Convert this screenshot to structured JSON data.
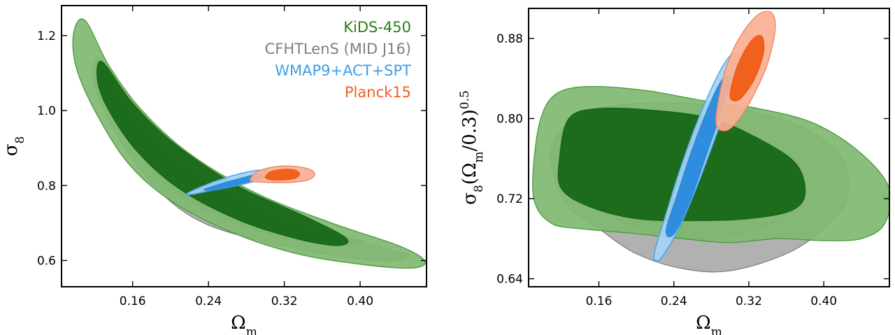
{
  "chart_data": [
    {
      "type": "contour",
      "panel": "left",
      "xlabel": "Ω",
      "xlabel_sub": "m",
      "ylabel": "σ",
      "ylabel_sub": "8",
      "xlim": [
        0.085,
        0.47
      ],
      "ylim": [
        0.53,
        1.28
      ],
      "x_ticks": [
        "0.16",
        "0.24",
        "0.32",
        "0.40"
      ],
      "x_tick_values": [
        0.16,
        0.24,
        0.32,
        0.4
      ],
      "y_ticks": [
        "1.2",
        "1.0",
        "0.8",
        "0.6"
      ],
      "y_tick_values": [
        1.2,
        1.0,
        0.8,
        0.6
      ],
      "grid": false,
      "legend_position": "top-right",
      "legend": [
        {
          "label": "KiDS-450",
          "color": "#2e7d1a"
        },
        {
          "label": "CFHTLenS (MID J16)",
          "color": "#808080"
        },
        {
          "label": "WMAP9+ACT+SPT",
          "color": "#3ca0e6"
        },
        {
          "label": "Planck15",
          "color": "#f06020"
        }
      ],
      "contours": [
        {
          "name": "CFHTLenS (MID J16)",
          "level": "95%",
          "fill": "#aaaaaa",
          "stroke": "#808080",
          "points": [
            [
              0.124,
              1.14
            ],
            [
              0.15,
              1.02
            ],
            [
              0.185,
              0.9
            ],
            [
              0.23,
              0.8
            ],
            [
              0.28,
              0.73
            ],
            [
              0.34,
              0.68
            ],
            [
              0.4,
              0.65
            ],
            [
              0.435,
              0.625
            ],
            [
              0.45,
              0.615
            ],
            [
              0.435,
              0.6
            ],
            [
              0.38,
              0.61
            ],
            [
              0.3,
              0.65
            ],
            [
              0.235,
              0.7
            ],
            [
              0.19,
              0.78
            ],
            [
              0.155,
              0.89
            ],
            [
              0.13,
              1.0
            ],
            [
              0.118,
              1.09
            ]
          ]
        },
        {
          "name": "CFHTLenS (MID J16)",
          "level": "68%",
          "fill": "#8c8c8c",
          "stroke": "#808080",
          "points": [
            [
              0.162,
              0.98
            ],
            [
              0.2,
              0.88
            ],
            [
              0.26,
              0.78
            ],
            [
              0.33,
              0.7
            ],
            [
              0.39,
              0.66
            ],
            [
              0.405,
              0.65
            ],
            [
              0.385,
              0.64
            ],
            [
              0.32,
              0.66
            ],
            [
              0.25,
              0.72
            ],
            [
              0.195,
              0.8
            ],
            [
              0.165,
              0.9
            ],
            [
              0.155,
              0.95
            ]
          ]
        },
        {
          "name": "KiDS-450",
          "level": "95%",
          "fill": "#7fb872",
          "stroke": "#4a9a3a",
          "points": [
            [
              0.11,
              1.24
            ],
            [
              0.135,
              1.12
            ],
            [
              0.17,
              1.0
            ],
            [
              0.22,
              0.885
            ],
            [
              0.29,
              0.78
            ],
            [
              0.37,
              0.7
            ],
            [
              0.44,
              0.64
            ],
            [
              0.468,
              0.6
            ],
            [
              0.455,
              0.58
            ],
            [
              0.4,
              0.59
            ],
            [
              0.33,
              0.62
            ],
            [
              0.26,
              0.68
            ],
            [
              0.2,
              0.76
            ],
            [
              0.155,
              0.86
            ],
            [
              0.12,
              1.0
            ],
            [
              0.1,
              1.12
            ],
            [
              0.098,
              1.21
            ]
          ]
        },
        {
          "name": "KiDS-450",
          "level": "68%",
          "fill": "#146614",
          "stroke": "#146614",
          "points": [
            [
              0.128,
              1.13
            ],
            [
              0.16,
              1.02
            ],
            [
              0.205,
              0.91
            ],
            [
              0.27,
              0.8
            ],
            [
              0.34,
              0.72
            ],
            [
              0.385,
              0.66
            ],
            [
              0.375,
              0.64
            ],
            [
              0.33,
              0.66
            ],
            [
              0.27,
              0.71
            ],
            [
              0.21,
              0.79
            ],
            [
              0.165,
              0.89
            ],
            [
              0.135,
              1.0
            ],
            [
              0.123,
              1.08
            ]
          ]
        },
        {
          "name": "WMAP9+ACT+SPT",
          "level": "95%",
          "fill": "#a7d1f5",
          "stroke": "#3ca0e6",
          "points": [
            [
              0.218,
              0.78
            ],
            [
              0.24,
              0.805
            ],
            [
              0.265,
              0.826
            ],
            [
              0.29,
              0.84
            ],
            [
              0.305,
              0.84
            ],
            [
              0.304,
              0.828
            ],
            [
              0.29,
              0.812
            ],
            [
              0.265,
              0.797
            ],
            [
              0.24,
              0.785
            ],
            [
              0.222,
              0.776
            ]
          ]
        },
        {
          "name": "WMAP9+ACT+SPT",
          "level": "68%",
          "fill": "#2588dd",
          "stroke": "#2588dd",
          "points": [
            [
              0.236,
              0.79
            ],
            [
              0.255,
              0.806
            ],
            [
              0.275,
              0.82
            ],
            [
              0.292,
              0.83
            ],
            [
              0.296,
              0.823
            ],
            [
              0.282,
              0.81
            ],
            [
              0.262,
              0.798
            ],
            [
              0.242,
              0.788
            ]
          ]
        },
        {
          "name": "Planck15",
          "level": "95%",
          "fill": "#f8b093",
          "stroke": "#f08060",
          "points": [
            [
              0.284,
              0.815
            ],
            [
              0.29,
              0.835
            ],
            [
              0.305,
              0.848
            ],
            [
              0.325,
              0.852
            ],
            [
              0.345,
              0.845
            ],
            [
              0.352,
              0.83
            ],
            [
              0.345,
              0.815
            ],
            [
              0.325,
              0.808
            ],
            [
              0.305,
              0.808
            ],
            [
              0.29,
              0.81
            ]
          ]
        },
        {
          "name": "Planck15",
          "level": "68%",
          "fill": "#f05a14",
          "stroke": "#f05a14",
          "points": [
            [
              0.3,
              0.822
            ],
            [
              0.305,
              0.836
            ],
            [
              0.318,
              0.843
            ],
            [
              0.33,
              0.842
            ],
            [
              0.336,
              0.832
            ],
            [
              0.332,
              0.82
            ],
            [
              0.318,
              0.815
            ],
            [
              0.305,
              0.816
            ]
          ]
        }
      ]
    },
    {
      "type": "contour",
      "panel": "right",
      "xlabel": "Ω",
      "xlabel_sub": "m",
      "ylabel": "σ",
      "ylabel_sub": "8",
      "ylabel_rest": "(Ω",
      "ylabel_rest_sub": "m",
      "ylabel_tail": "/0.3)",
      "ylabel_sup": "0.5",
      "xlim": [
        0.085,
        0.47
      ],
      "ylim": [
        0.632,
        0.91
      ],
      "x_ticks": [
        "0.16",
        "0.24",
        "0.32",
        "0.40"
      ],
      "x_tick_values": [
        0.16,
        0.24,
        0.32,
        0.4
      ],
      "y_ticks": [
        "0.88",
        "0.80",
        "0.72",
        "0.64"
      ],
      "y_tick_values": [
        0.88,
        0.8,
        0.72,
        0.64
      ],
      "grid": false,
      "contours": [
        {
          "name": "CFHTLenS (MID J16)",
          "level": "95%",
          "fill": "#aaaaaa",
          "stroke": "#808080",
          "points": [
            [
              0.108,
              0.76
            ],
            [
              0.12,
              0.79
            ],
            [
              0.15,
              0.808
            ],
            [
              0.2,
              0.815
            ],
            [
              0.26,
              0.815
            ],
            [
              0.32,
              0.808
            ],
            [
              0.38,
              0.79
            ],
            [
              0.42,
              0.76
            ],
            [
              0.425,
              0.72
            ],
            [
              0.4,
              0.69
            ],
            [
              0.36,
              0.665
            ],
            [
              0.3,
              0.648
            ],
            [
              0.25,
              0.65
            ],
            [
              0.2,
              0.665
            ],
            [
              0.16,
              0.69
            ],
            [
              0.125,
              0.715
            ]
          ]
        },
        {
          "name": "CFHTLenS (MID J16)",
          "level": "68%",
          "fill": "#929292",
          "stroke": "#808080",
          "points": [
            [
              0.16,
              0.75
            ],
            [
              0.18,
              0.77
            ],
            [
              0.23,
              0.78
            ],
            [
              0.3,
              0.78
            ],
            [
              0.36,
              0.765
            ],
            [
              0.38,
              0.74
            ],
            [
              0.37,
              0.71
            ],
            [
              0.33,
              0.69
            ],
            [
              0.27,
              0.68
            ],
            [
              0.21,
              0.688
            ],
            [
              0.17,
              0.705
            ],
            [
              0.155,
              0.725
            ]
          ]
        },
        {
          "name": "KiDS-450",
          "level": "95%",
          "fill": "#7fb872",
          "stroke": "#4a9a3a",
          "points": [
            [
              0.09,
              0.75
            ],
            [
              0.098,
              0.8
            ],
            [
              0.115,
              0.825
            ],
            [
              0.15,
              0.832
            ],
            [
              0.21,
              0.828
            ],
            [
              0.27,
              0.818
            ],
            [
              0.33,
              0.81
            ],
            [
              0.39,
              0.795
            ],
            [
              0.44,
              0.765
            ],
            [
              0.47,
              0.73
            ],
            [
              0.465,
              0.695
            ],
            [
              0.44,
              0.68
            ],
            [
              0.4,
              0.678
            ],
            [
              0.35,
              0.68
            ],
            [
              0.3,
              0.676
            ],
            [
              0.25,
              0.68
            ],
            [
              0.2,
              0.685
            ],
            [
              0.14,
              0.69
            ],
            [
              0.11,
              0.695
            ],
            [
              0.092,
              0.715
            ]
          ]
        },
        {
          "name": "KiDS-450",
          "level": "68%",
          "fill": "#146614",
          "stroke": "#146614",
          "points": [
            [
              0.118,
              0.76
            ],
            [
              0.128,
              0.8
            ],
            [
              0.16,
              0.81
            ],
            [
              0.22,
              0.808
            ],
            [
              0.28,
              0.8
            ],
            [
              0.33,
              0.78
            ],
            [
              0.37,
              0.755
            ],
            [
              0.38,
              0.725
            ],
            [
              0.365,
              0.708
            ],
            [
              0.32,
              0.7
            ],
            [
              0.26,
              0.698
            ],
            [
              0.2,
              0.7
            ],
            [
              0.15,
              0.712
            ],
            [
              0.12,
              0.73
            ]
          ]
        },
        {
          "name": "WMAP9+ACT+SPT",
          "level": "95%",
          "fill": "#a7d1f5",
          "stroke": "#3ca0e6",
          "points": [
            [
              0.219,
              0.665
            ],
            [
              0.23,
              0.7
            ],
            [
              0.245,
              0.745
            ],
            [
              0.262,
              0.79
            ],
            [
              0.28,
              0.83
            ],
            [
              0.296,
              0.858
            ],
            [
              0.306,
              0.865
            ],
            [
              0.309,
              0.85
            ],
            [
              0.3,
              0.82
            ],
            [
              0.284,
              0.78
            ],
            [
              0.266,
              0.735
            ],
            [
              0.248,
              0.695
            ],
            [
              0.232,
              0.668
            ],
            [
              0.223,
              0.658
            ]
          ]
        },
        {
          "name": "WMAP9+ACT+SPT",
          "level": "68%",
          "fill": "#2588dd",
          "stroke": "#2588dd",
          "points": [
            [
              0.232,
              0.69
            ],
            [
              0.244,
              0.725
            ],
            [
              0.258,
              0.765
            ],
            [
              0.272,
              0.8
            ],
            [
              0.286,
              0.83
            ],
            [
              0.296,
              0.843
            ],
            [
              0.299,
              0.832
            ],
            [
              0.288,
              0.8
            ],
            [
              0.274,
              0.762
            ],
            [
              0.259,
              0.722
            ],
            [
              0.245,
              0.692
            ],
            [
              0.236,
              0.682
            ]
          ]
        },
        {
          "name": "Planck15",
          "level": "95%",
          "fill": "#f8b093",
          "stroke": "#f08060",
          "points": [
            [
              0.285,
              0.795
            ],
            [
              0.29,
              0.83
            ],
            [
              0.3,
              0.862
            ],
            [
              0.315,
              0.888
            ],
            [
              0.332,
              0.905
            ],
            [
              0.345,
              0.905
            ],
            [
              0.348,
              0.888
            ],
            [
              0.34,
              0.855
            ],
            [
              0.326,
              0.825
            ],
            [
              0.31,
              0.8
            ],
            [
              0.296,
              0.788
            ]
          ]
        },
        {
          "name": "Planck15",
          "level": "68%",
          "fill": "#f05a14",
          "stroke": "#f05a14",
          "points": [
            [
              0.3,
              0.822
            ],
            [
              0.305,
              0.845
            ],
            [
              0.314,
              0.865
            ],
            [
              0.325,
              0.88
            ],
            [
              0.334,
              0.882
            ],
            [
              0.336,
              0.868
            ],
            [
              0.33,
              0.848
            ],
            [
              0.32,
              0.83
            ],
            [
              0.308,
              0.818
            ]
          ]
        }
      ]
    }
  ]
}
